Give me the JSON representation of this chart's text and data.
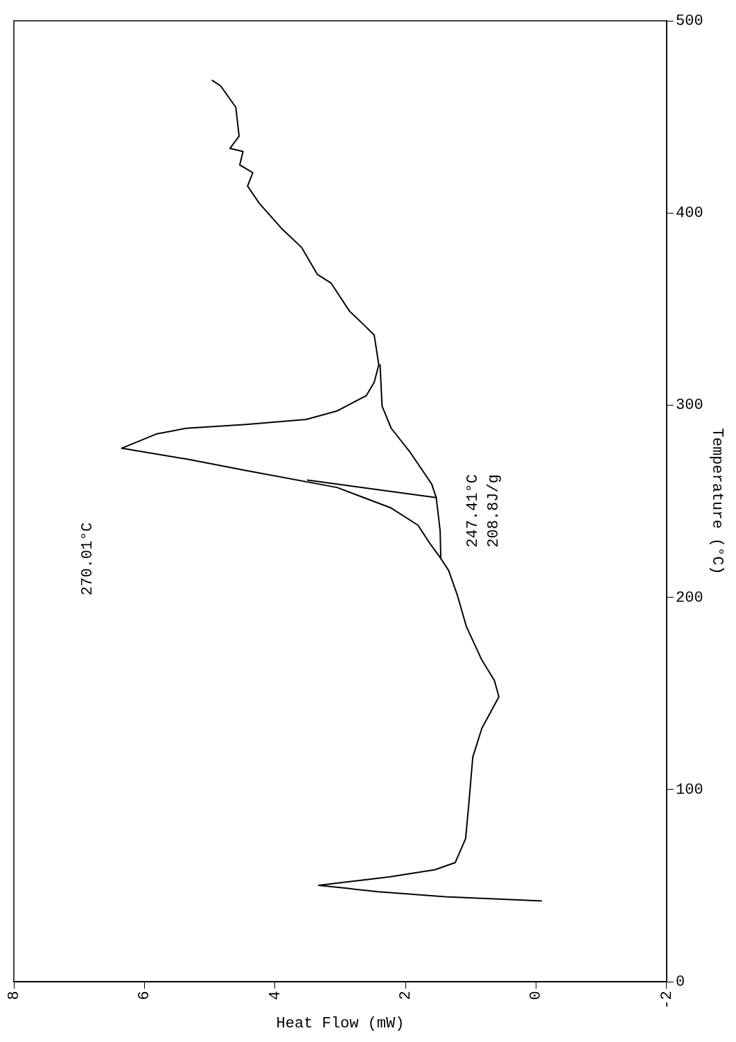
{
  "chart_data": {
    "type": "line",
    "xlabel": "Heat Flow (mW)",
    "ylabel": "Temperature (°C)",
    "xlim": [
      8,
      -2
    ],
    "xticks": [
      8,
      6,
      4,
      2,
      0,
      -2
    ],
    "ylim": [
      0,
      500
    ],
    "yticks": [
      0,
      100,
      200,
      300,
      400,
      500
    ],
    "grid": false,
    "legend": false,
    "marker": "none",
    "line_style": "solid",
    "annotations": [
      "270.01°C",
      "247.41°C",
      "208.8J/g"
    ],
    "series": [
      {
        "color": "#000000",
        "x": [
          -0.08,
          1.39,
          2.42,
          3.33,
          2.24,
          1.55,
          1.24,
          1.08,
          1.03,
          0.97,
          0.83,
          0.57,
          0.64,
          0.84,
          1.07,
          1.21,
          1.34,
          1.46,
          1.62,
          1.81,
          2.22,
          3.05,
          4.44,
          5.36,
          6.35,
          5.82,
          5.36,
          4.44,
          3.52,
          3.05,
          2.6,
          2.48,
          2.41,
          2.48,
          2.66,
          2.86,
          3.14,
          3.35,
          3.59,
          3.9,
          4.24,
          4.42,
          4.34,
          4.54,
          4.49,
          4.69,
          4.55,
          4.6,
          4.83,
          4.96
        ],
        "values": [
          42.1,
          44.3,
          46.9,
          50.2,
          54.6,
          58.3,
          62,
          74.5,
          93,
          117,
          132,
          148.3,
          156.8,
          168,
          185,
          201.5,
          214,
          220.3,
          227.7,
          237.6,
          246.5,
          257.2,
          266,
          272,
          277.6,
          285,
          288,
          290,
          292.6,
          297,
          305,
          312,
          321,
          336.5,
          342.5,
          349,
          363.5,
          368,
          382,
          392,
          405,
          414,
          421,
          425,
          432,
          433.6,
          440,
          455,
          466,
          469
        ]
      },
      {
        "color": "#000000",
        "x": [
          1.46,
          1.47,
          1.53,
          1.6,
          1.94,
          2.22,
          2.36,
          2.39
        ],
        "values": [
          220.3,
          234.6,
          251.9,
          259,
          276,
          288,
          299.6,
          321
        ]
      },
      {
        "color": "#000000",
        "x": [
          1.53,
          3.5
        ],
        "values": [
          251.9,
          261
        ]
      }
    ]
  }
}
